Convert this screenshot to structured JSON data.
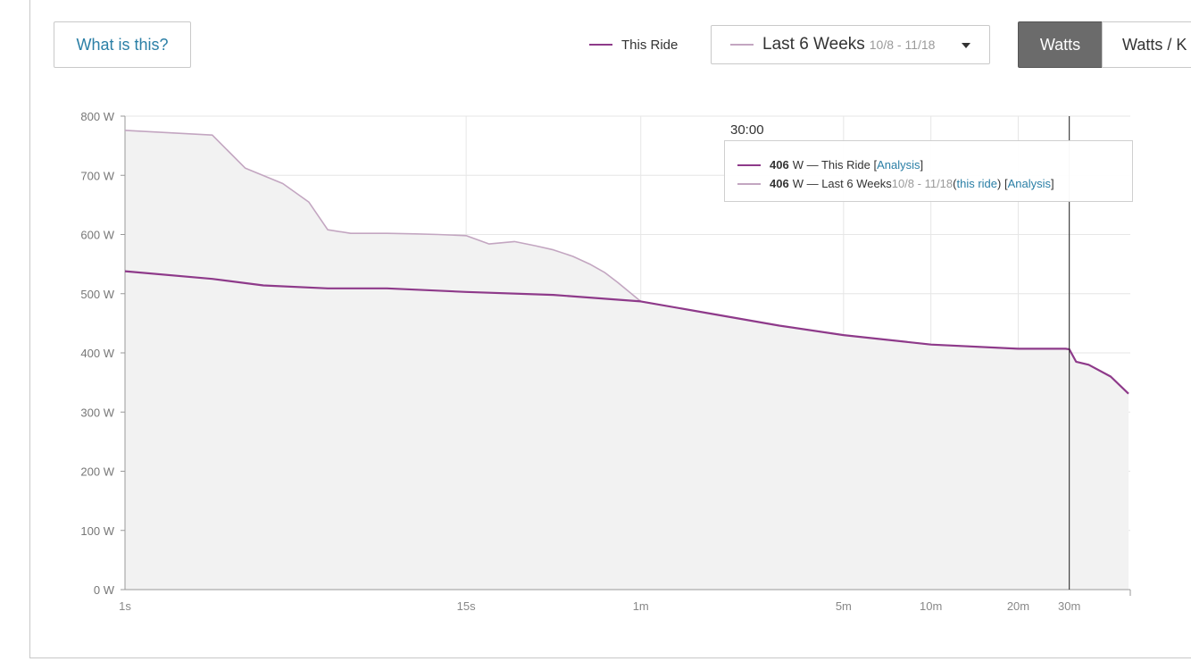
{
  "header": {
    "what_label": "What is this?",
    "legend_this_ride": "This Ride",
    "period_label": "Last 6 Weeks",
    "period_range": "10/8 - 11/18",
    "unit_watts": "Watts",
    "unit_wkg": "Watts / K",
    "selected_unit": "Watts"
  },
  "tooltip": {
    "time": "30:00",
    "row1": {
      "value": "406",
      "unit_text": " W — This Ride [",
      "link": "Analysis",
      "end": "]"
    },
    "row2": {
      "value": "406",
      "unit_text": " W — Last 6 Weeks ",
      "range": "10/8 - 11/18",
      "open": " (",
      "link1": "this ride",
      "mid": ") [",
      "link2": "Analysis",
      "end": "]"
    }
  },
  "colors": {
    "this_ride": "#8e3a8a",
    "last_6_weeks": "#c3a6c1",
    "area_fill": "#f2f2f2",
    "link": "#2b7fa6"
  },
  "chart_data": {
    "type": "line",
    "x_scale": "log",
    "x_unit": "seconds",
    "xlim": [
      1,
      2880
    ],
    "ylim": [
      0,
      800
    ],
    "y_ticks": [
      0,
      100,
      200,
      300,
      400,
      500,
      600,
      700,
      800
    ],
    "y_tick_labels": [
      "0 W",
      "100 W",
      "200 W",
      "300 W",
      "400 W",
      "500 W",
      "600 W",
      "700 W",
      "800 W"
    ],
    "x_ticks": [
      1,
      15,
      60,
      300,
      600,
      1200,
      1800
    ],
    "x_tick_labels": [
      "1s",
      "15s",
      "1m",
      "5m",
      "10m",
      "20m",
      "30m"
    ],
    "cursor_x": 1800,
    "series": [
      {
        "name": "This Ride",
        "color": "#8e3a8a",
        "points": [
          [
            1,
            538
          ],
          [
            2,
            525
          ],
          [
            3,
            514
          ],
          [
            5,
            509
          ],
          [
            8,
            509
          ],
          [
            15,
            503
          ],
          [
            30,
            498
          ],
          [
            60,
            487
          ],
          [
            100,
            468
          ],
          [
            180,
            446
          ],
          [
            300,
            430
          ],
          [
            600,
            414
          ],
          [
            1200,
            407
          ],
          [
            1750,
            407
          ],
          [
            1800,
            406
          ],
          [
            1900,
            385
          ],
          [
            2100,
            380
          ],
          [
            2500,
            360
          ],
          [
            2880,
            331
          ]
        ]
      },
      {
        "name": "Last 6 Weeks",
        "color": "#c3a6c1",
        "area": true,
        "points": [
          [
            1,
            776
          ],
          [
            2,
            768
          ],
          [
            2.6,
            712
          ],
          [
            3.5,
            686
          ],
          [
            4.3,
            655
          ],
          [
            5,
            608
          ],
          [
            6,
            602
          ],
          [
            8,
            602
          ],
          [
            10,
            601
          ],
          [
            12,
            600
          ],
          [
            15,
            598
          ],
          [
            18,
            584
          ],
          [
            22,
            588
          ],
          [
            26,
            581
          ],
          [
            30,
            574
          ],
          [
            35,
            563
          ],
          [
            40,
            550
          ],
          [
            45,
            536
          ],
          [
            50,
            519
          ],
          [
            60,
            487
          ],
          [
            100,
            468
          ],
          [
            180,
            446
          ],
          [
            300,
            430
          ],
          [
            600,
            414
          ],
          [
            1200,
            407
          ],
          [
            1750,
            407
          ],
          [
            1800,
            406
          ],
          [
            1900,
            385
          ],
          [
            2100,
            380
          ],
          [
            2500,
            360
          ],
          [
            2880,
            331
          ]
        ]
      }
    ]
  }
}
